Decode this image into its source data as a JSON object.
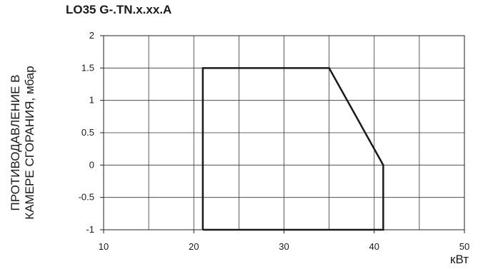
{
  "chart_data": {
    "type": "line",
    "title": "LO35 G-.TN.x.xx.A",
    "ylabel_lines": [
      "ПРОТИВОДАВЛЕНИЕ В",
      "КАМЕРЕ СГОРАНИЯ, мбар"
    ],
    "xlabel": "кВт",
    "xlim": [
      10,
      50
    ],
    "ylim": [
      -1,
      2
    ],
    "x_ticks": [
      10,
      20,
      30,
      40,
      50
    ],
    "y_ticks": [
      -1,
      -0.5,
      0,
      0.5,
      1,
      1.5,
      2
    ],
    "x_tick_labels": [
      "10",
      "20",
      "30",
      "40",
      "50"
    ],
    "y_tick_labels": [
      "-1",
      "-0.5",
      "0",
      "0.5",
      "1",
      "1.5",
      "2"
    ],
    "grid": true,
    "series": [
      {
        "points": [
          {
            "x": 21,
            "y": -1
          },
          {
            "x": 21,
            "y": 1.5
          },
          {
            "x": 35,
            "y": 1.5
          },
          {
            "x": 41,
            "y": 0
          },
          {
            "x": 41,
            "y": -1
          },
          {
            "x": 21,
            "y": -1
          }
        ]
      }
    ]
  }
}
